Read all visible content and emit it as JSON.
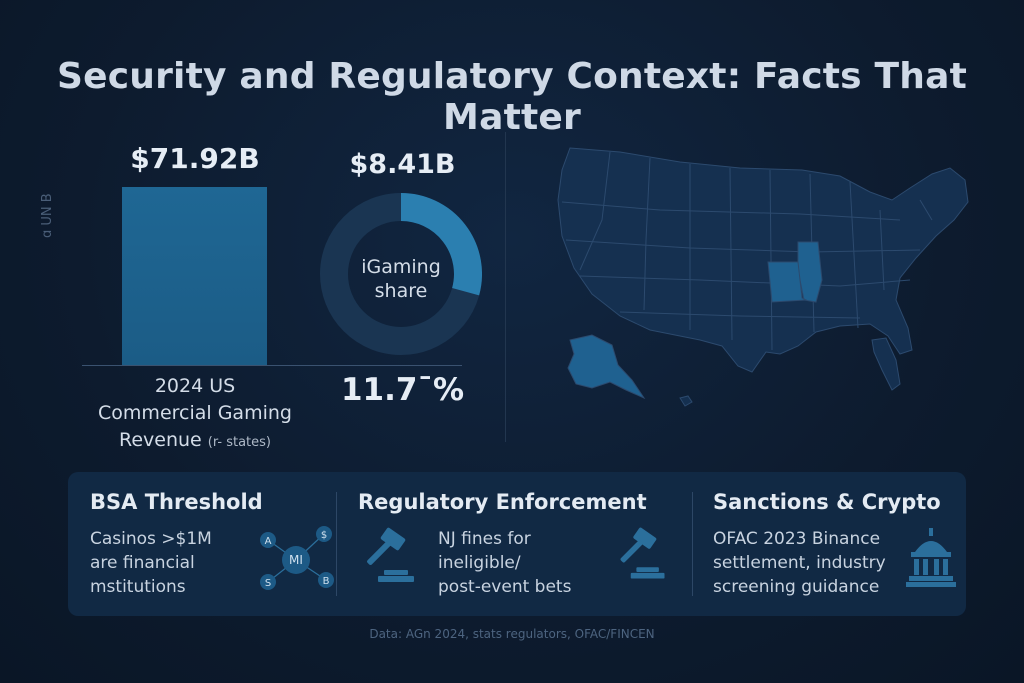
{
  "title": "Security and Regulatory Context: Facts That Matter",
  "axis_hint": "ɑ UN B",
  "revenue": {
    "value": "$71.92B",
    "label_line1": "2024 US",
    "label_line2": "Commercial Gaming",
    "label_line3": "Revenue",
    "label_note": "(r- states)"
  },
  "igaming": {
    "value": "$8.41B",
    "label_line1": "iGaming",
    "label_line2": "share",
    "percent": "11.7¯%",
    "share_fraction": 0.117
  },
  "map": {
    "highlighted_states": [
      "Illinois",
      "Missouri",
      "Alaska"
    ]
  },
  "cards": [
    {
      "title": "BSA Threshold",
      "text_line1": "Casinos >$1M",
      "text_line2": "are financial",
      "text_line3": "mstitutions",
      "icon": "network-currency-icon",
      "icon_labels": [
        "A",
        "$",
        "MI",
        "S",
        "B"
      ]
    },
    {
      "title": "Regulatory Enforcement",
      "text_line1": "NJ fines for",
      "text_line2": "ineligible/",
      "text_line3": "post-event bets",
      "icon": "gavel-icon"
    },
    {
      "title": "Sanctions & Crypto",
      "text_line1": "OFAC 2023 Binance",
      "text_line2": "settlement, industry",
      "text_line3": "screening guidance",
      "icon": "government-building-icon"
    }
  ],
  "source": "Data: AGn 2024, stats regulators, OFAC/FINCEN",
  "colors": {
    "background": "#0d1b2e",
    "accent": "#1f6794",
    "donut_track": "#1a3552",
    "donut_share": "#2b7fb0",
    "map_fill": "#153050",
    "map_highlight": "#1f6190",
    "panel": "#112944"
  }
}
